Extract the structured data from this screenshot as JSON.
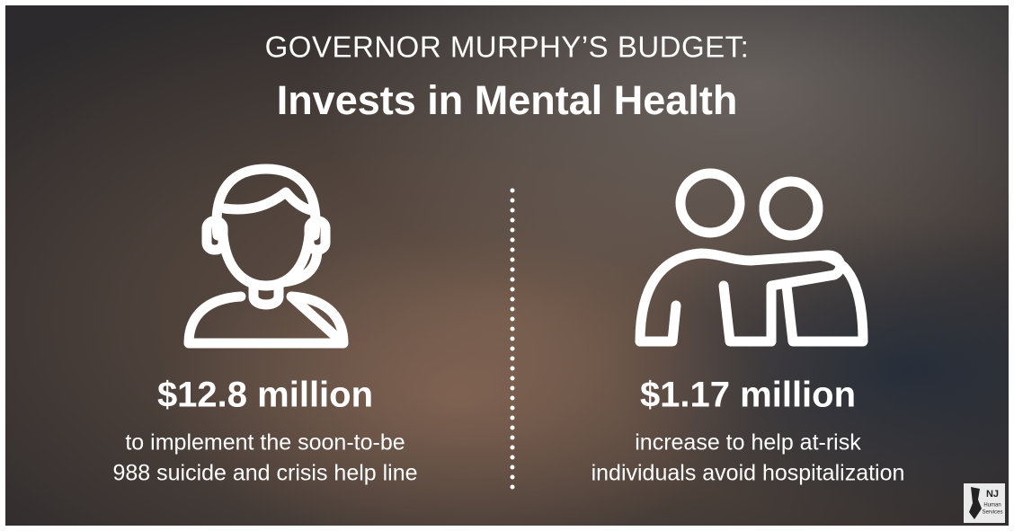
{
  "header": {
    "kicker": "GOVERNOR MURPHY’S BUDGET:",
    "title": "Invests in Mental Health"
  },
  "items": [
    {
      "amount": "$12.8 million",
      "description": [
        "to implement the soon-to-be",
        "988 suicide and crisis help line"
      ]
    },
    {
      "amount": "$1.17 million",
      "description": [
        "increase to help at-risk",
        "individuals avoid hospitalization"
      ]
    }
  ],
  "logo": {
    "text": "NJ",
    "subtext": [
      "Human",
      "Services"
    ]
  }
}
